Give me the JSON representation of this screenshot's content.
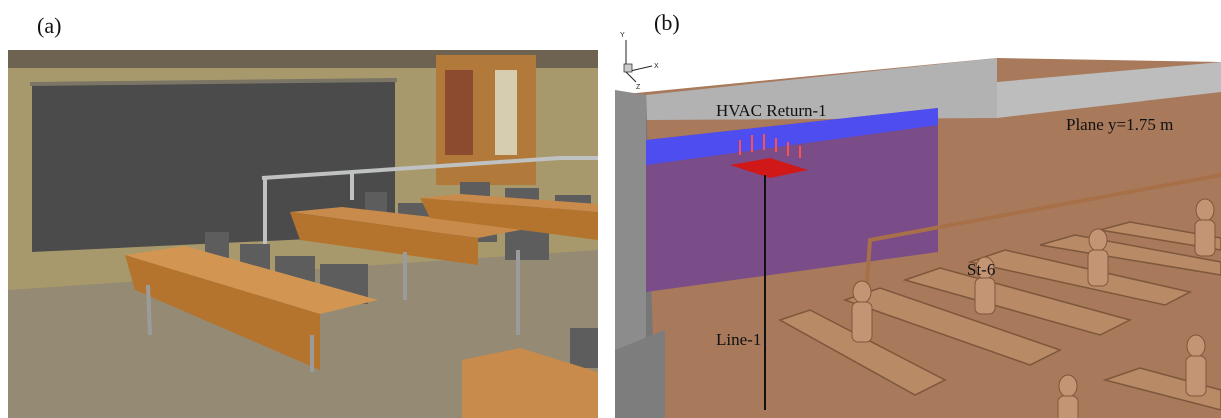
{
  "panel_a": {
    "label": "(a)"
  },
  "panel_b": {
    "label": "(b)",
    "axes": {
      "y": "Y",
      "x": "X",
      "z": "Z"
    },
    "annotations": {
      "return": "HVAC Return-1",
      "plane": "Plane y=1.75 m",
      "station": "St-6",
      "line": "Line-1"
    }
  }
}
